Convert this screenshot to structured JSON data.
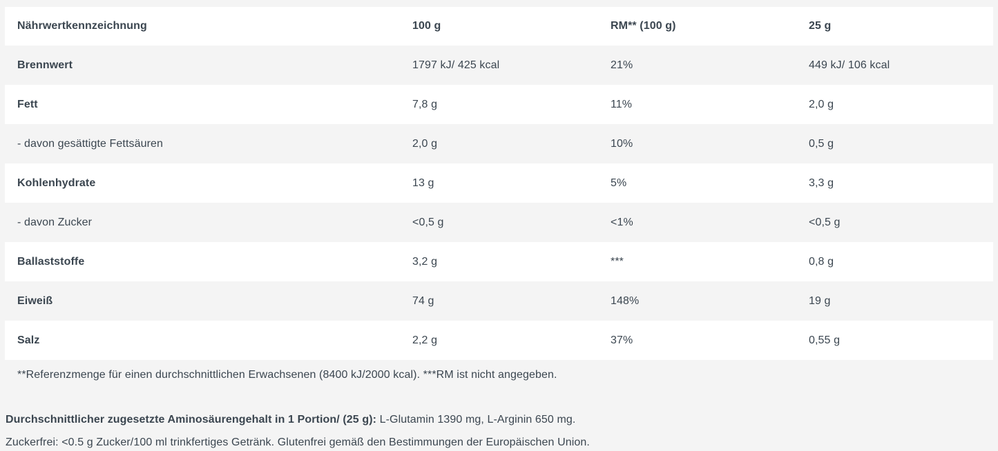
{
  "page": {
    "background_color": "#f4f4f4",
    "card_color": "#ffffff",
    "text_color": "#3b4650"
  },
  "table": {
    "header": {
      "col0": "Nährwertkennzeichnung",
      "col1": "100 g",
      "col2": "RM** (100 g)",
      "col3": "25 g"
    },
    "rows": [
      {
        "label": "Brennwert",
        "v100": "1797 kJ/ 425 kcal",
        "rm": "21%",
        "v25": "449 kJ/ 106 kcal"
      },
      {
        "label": "Fett",
        "v100": "7,8 g",
        "rm": "11%",
        "v25": "2,0 g"
      },
      {
        "label": "- davon gesättigte Fettsäuren",
        "v100": "2,0 g",
        "rm": "10%",
        "v25": "0,5 g"
      },
      {
        "label": "Kohlenhydrate",
        "v100": "13 g",
        "rm": "5%",
        "v25": "3,3 g"
      },
      {
        "label": "- davon Zucker",
        "v100": "<0,5 g",
        "rm": "<1%",
        "v25": "<0,5 g"
      },
      {
        "label": "Ballaststoffe",
        "v100": "3,2 g",
        "rm": "***",
        "v25": "0,8 g"
      },
      {
        "label": "Eiweiß",
        "v100": "74 g",
        "rm": "148%",
        "v25": "19 g"
      },
      {
        "label": "Salz",
        "v100": "2,2 g",
        "rm": "37%",
        "v25": "0,55 g"
      }
    ]
  },
  "notes": {
    "reference": "**Referenzmenge für einen durchschnittlichen Erwachsenen (8400 kJ/2000 kcal). ***RM ist nicht angegeben.",
    "amino_label": "Durchschnittlicher zugesetzte Aminosäurengehalt in 1 Portion/ (25 g):",
    "amino_value": " L-Glutamin 1390 mg, L-Arginin 650 mg.",
    "sugarfree": "Zuckerfrei: <0.5 g Zucker/100 ml trinkfertiges Getränk. Glutenfrei gemäß den Bestimmungen der Europäischen Union."
  }
}
